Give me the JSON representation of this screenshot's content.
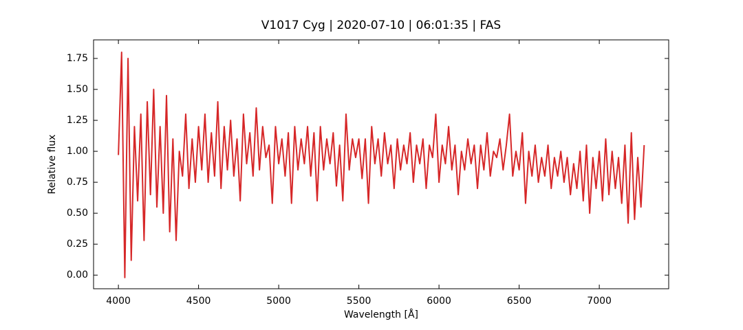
{
  "chart_data": {
    "type": "line",
    "title": "V1017 Cyg | 2020-07-10 | 06:01:35 | FAS",
    "x_label": "Wavelength [Å]",
    "y_label": "Relative flux",
    "color": "#d62728",
    "xlim": [
      3845,
      7433
    ],
    "ylim": [
      -0.11,
      1.9
    ],
    "xticks": [
      4000,
      4500,
      5000,
      5500,
      6000,
      6500,
      7000
    ],
    "yticks": [
      {
        "value": 0,
        "label": "0.00"
      },
      {
        "value": 0.25,
        "label": "0.25"
      },
      {
        "value": 0.5,
        "label": "0.50"
      },
      {
        "value": 0.75,
        "label": "0.75"
      },
      {
        "value": 1,
        "label": "1.00"
      },
      {
        "value": 1.25,
        "label": "1.25"
      },
      {
        "value": 1.5,
        "label": "1.50"
      },
      {
        "value": 1.75,
        "label": "1.75"
      }
    ],
    "x": [
      4000,
      4020,
      4040,
      4060,
      4080,
      4100,
      4120,
      4140,
      4160,
      4180,
      4200,
      4220,
      4240,
      4260,
      4280,
      4300,
      4320,
      4340,
      4360,
      4380,
      4400,
      4420,
      4440,
      4460,
      4480,
      4500,
      4520,
      4540,
      4560,
      4580,
      4600,
      4620,
      4640,
      4660,
      4680,
      4700,
      4720,
      4740,
      4760,
      4780,
      4800,
      4820,
      4840,
      4860,
      4880,
      4900,
      4920,
      4940,
      4960,
      4980,
      5000,
      5020,
      5040,
      5060,
      5080,
      5100,
      5120,
      5140,
      5160,
      5180,
      5200,
      5220,
      5240,
      5260,
      5280,
      5300,
      5320,
      5340,
      5360,
      5380,
      5400,
      5420,
      5440,
      5460,
      5480,
      5500,
      5520,
      5540,
      5560,
      5580,
      5600,
      5620,
      5640,
      5660,
      5680,
      5700,
      5720,
      5740,
      5760,
      5780,
      5800,
      5820,
      5840,
      5860,
      5880,
      5900,
      5920,
      5940,
      5960,
      5980,
      6000,
      6020,
      6040,
      6060,
      6080,
      6100,
      6120,
      6140,
      6160,
      6180,
      6200,
      6220,
      6240,
      6260,
      6280,
      6300,
      6320,
      6340,
      6360,
      6380,
      6400,
      6420,
      6440,
      6460,
      6480,
      6500,
      6520,
      6540,
      6560,
      6580,
      6600,
      6620,
      6640,
      6660,
      6680,
      6700,
      6720,
      6740,
      6760,
      6780,
      6800,
      6820,
      6840,
      6860,
      6880,
      6900,
      6920,
      6940,
      6960,
      6980,
      7000,
      7020,
      7040,
      7060,
      7080,
      7100,
      7120,
      7140,
      7160,
      7180,
      7200,
      7220,
      7240,
      7260,
      7280
    ],
    "values": [
      0.97,
      1.8,
      -0.02,
      1.75,
      0.12,
      1.2,
      0.6,
      1.3,
      0.28,
      1.4,
      0.65,
      1.5,
      0.55,
      1.2,
      0.5,
      1.45,
      0.35,
      1.1,
      0.28,
      1.0,
      0.8,
      1.3,
      0.7,
      1.1,
      0.75,
      1.2,
      0.85,
      1.3,
      0.75,
      1.15,
      0.8,
      1.4,
      0.7,
      1.2,
      0.85,
      1.25,
      0.8,
      1.1,
      0.6,
      1.3,
      0.9,
      1.15,
      0.8,
      1.35,
      0.85,
      1.2,
      0.95,
      1.05,
      0.58,
      1.2,
      0.9,
      1.1,
      0.8,
      1.15,
      0.58,
      1.2,
      0.85,
      1.1,
      0.9,
      1.2,
      0.8,
      1.15,
      0.6,
      1.2,
      0.85,
      1.1,
      0.9,
      1.15,
      0.72,
      1.05,
      0.6,
      1.3,
      0.85,
      1.1,
      0.95,
      1.1,
      0.78,
      1.1,
      0.58,
      1.2,
      0.9,
      1.1,
      0.8,
      1.15,
      0.9,
      1.05,
      0.7,
      1.1,
      0.85,
      1.05,
      0.9,
      1.15,
      0.75,
      1.05,
      0.9,
      1.1,
      0.7,
      1.05,
      0.95,
      1.3,
      0.75,
      1.05,
      0.9,
      1.2,
      0.85,
      1.05,
      0.65,
      1.0,
      0.85,
      1.1,
      0.9,
      1.05,
      0.7,
      1.05,
      0.85,
      1.15,
      0.8,
      1.0,
      0.95,
      1.1,
      0.85,
      1.05,
      1.3,
      0.8,
      1.0,
      0.85,
      1.15,
      0.58,
      1.0,
      0.8,
      1.05,
      0.75,
      0.95,
      0.8,
      1.05,
      0.7,
      0.95,
      0.8,
      1.0,
      0.75,
      0.95,
      0.65,
      0.9,
      0.7,
      1.0,
      0.6,
      1.05,
      0.5,
      0.95,
      0.7,
      1.0,
      0.6,
      1.1,
      0.65,
      1.0,
      0.7,
      0.95,
      0.58,
      1.05,
      0.42,
      1.15,
      0.45,
      0.95,
      0.55,
      1.05
    ]
  }
}
